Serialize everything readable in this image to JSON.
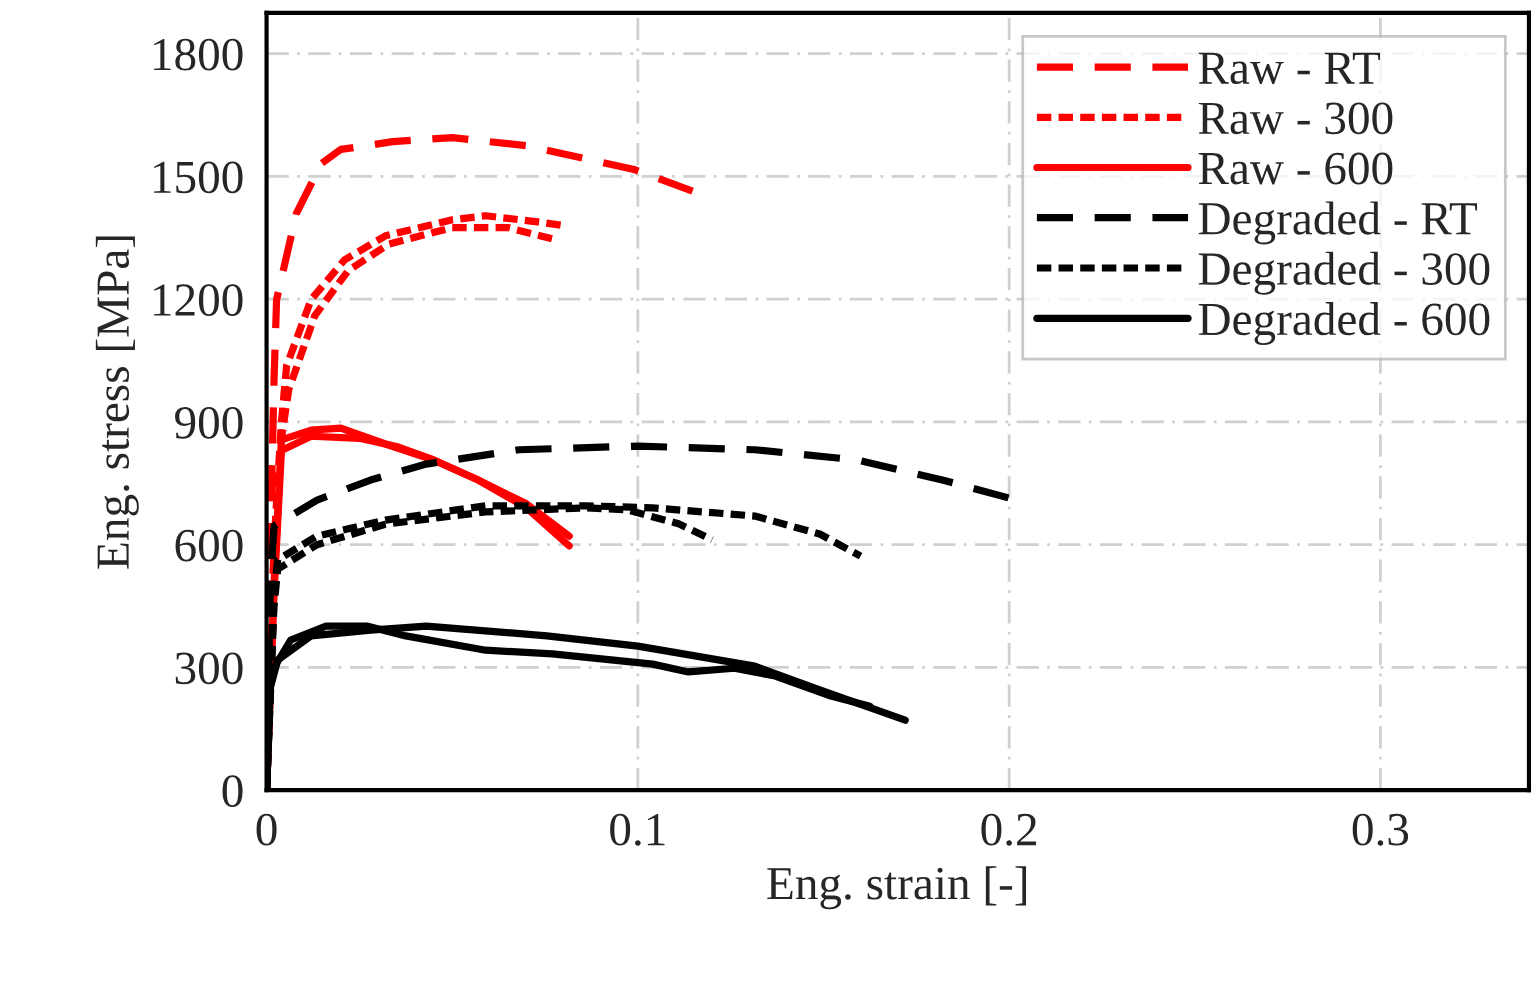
{
  "chart_data": {
    "type": "line",
    "xlabel": "Eng. strain [-]",
    "ylabel": "Eng. stress [MPa]",
    "xlim": [
      0,
      0.34
    ],
    "ylim": [
      0,
      1900
    ],
    "xticks": [
      0,
      0.1,
      0.2,
      0.3
    ],
    "yticks": [
      0,
      300,
      600,
      900,
      1200,
      1500,
      1800
    ],
    "grid": true,
    "legend": "top right",
    "marker": "none",
    "series": [
      {
        "name": "Raw - RT",
        "color": "#ff0000",
        "line_style": "dashed",
        "x": [
          0,
          0.001,
          0.002,
          0.0027,
          0.008,
          0.0147,
          0.02,
          0.034,
          0.05,
          0.07,
          0.099,
          0.115
        ],
        "values": [
          0,
          600,
          1000,
          1199,
          1409,
          1531,
          1566,
          1585,
          1595,
          1575,
          1517,
          1463
        ]
      },
      {
        "name": "Raw - 300",
        "color": "#ff0000",
        "line_style": "dotted",
        "x": [
          0,
          0.002,
          0.004,
          0.0054,
          0.012,
          0.021,
          0.032,
          0.05,
          0.059,
          0.073,
          0.08
        ],
        "values": [
          0,
          600,
          900,
          1037,
          1199,
          1296,
          1355,
          1394,
          1404,
          1389,
          1380
        ]
      },
      {
        "color": "#ff0000",
        "line_style": "dotted",
        "x": [
          0,
          0.002,
          0.004,
          0.006,
          0.013,
          0.022,
          0.033,
          0.05,
          0.065,
          0.078
        ],
        "values": [
          0,
          580,
          860,
          980,
          1160,
          1270,
          1335,
          1375,
          1375,
          1345
        ]
      },
      {
        "name": "Raw - 600",
        "color": "#ff0000",
        "line_style": "solid",
        "x": [
          0,
          0.002,
          0.004,
          0.012,
          0.02,
          0.032,
          0.045,
          0.057,
          0.07,
          0.0815
        ],
        "values": [
          0,
          500,
          856,
          880,
          885,
          846,
          807,
          758,
          700,
          621
        ]
      },
      {
        "color": "#ff0000",
        "line_style": "solid",
        "x": [
          0,
          0.002,
          0.004,
          0.012,
          0.025,
          0.035,
          0.045,
          0.057,
          0.07,
          0.0815
        ],
        "values": [
          0,
          480,
          830,
          865,
          860,
          840,
          807,
          758,
          690,
          597
        ]
      },
      {
        "name": "Degraded - RT",
        "color": "#000000",
        "line_style": "dashed",
        "x": [
          0,
          0.001,
          0.002,
          0.0136,
          0.028,
          0.043,
          0.068,
          0.1,
          0.1315,
          0.159,
          0.182,
          0.202
        ],
        "values": [
          0,
          500,
          646,
          709,
          758,
          797,
          832,
          841,
          832,
          807,
          758,
          709
        ]
      },
      {
        "name": "Degraded - 300",
        "color": "#000000",
        "line_style": "dotted",
        "x": [
          0,
          0.002,
          0.003,
          0.0136,
          0.032,
          0.059,
          0.086,
          0.104,
          0.1315,
          0.149,
          0.16
        ],
        "values": [
          0,
          480,
          563,
          621,
          660,
          695,
          695,
          690,
          670,
          626,
          572
        ]
      },
      {
        "color": "#000000",
        "line_style": "dotted",
        "x": [
          0,
          0.002,
          0.003,
          0.0136,
          0.032,
          0.059,
          0.086,
          0.097,
          0.111,
          0.12
        ],
        "values": [
          0,
          450,
          540,
          600,
          650,
          680,
          690,
          685,
          651,
          612
        ]
      },
      {
        "name": "Degraded - 600",
        "color": "#000000",
        "line_style": "solid",
        "x": [
          0,
          0.0005,
          0.001,
          0.0065,
          0.016,
          0.027,
          0.0375,
          0.059,
          0.077,
          0.104,
          0.1136,
          0.126,
          0.137,
          0.152,
          0.1625
        ],
        "values": [
          0,
          120,
          284,
          367,
          401,
          401,
          377,
          342,
          333,
          308,
          289,
          298,
          279,
          230,
          205
        ]
      },
      {
        "color": "#000000",
        "line_style": "solid",
        "x": [
          0,
          0.001,
          0.003,
          0.012,
          0.028,
          0.043,
          0.0755,
          0.1,
          0.1315,
          0.149,
          0.172
        ],
        "values": [
          0,
          250,
          318,
          377,
          391,
          401,
          377,
          352,
          303,
          245,
          171
        ]
      }
    ]
  }
}
